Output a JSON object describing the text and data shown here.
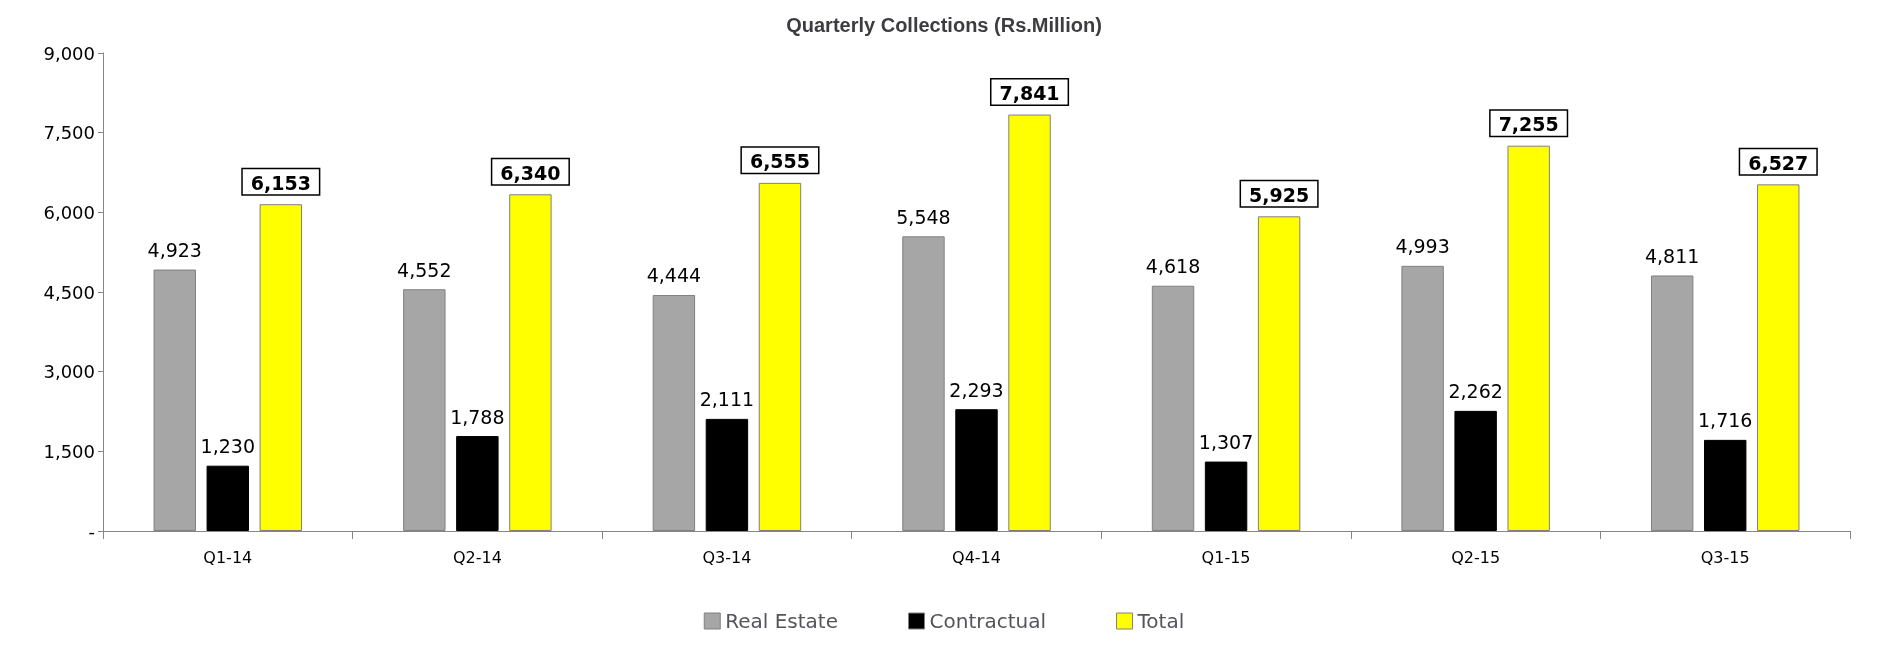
{
  "chart_data": {
    "type": "bar",
    "title": "Quarterly Collections (Rs.Million)",
    "categories": [
      "Q1-14",
      "Q2-14",
      "Q3-14",
      "Q4-14",
      "Q1-15",
      "Q2-15",
      "Q3-15"
    ],
    "series": [
      {
        "name": "Real Estate",
        "color": "#a6a6a6",
        "values": [
          4923,
          4552,
          4444,
          5548,
          4618,
          4993,
          4811
        ],
        "value_labels": [
          "4,923",
          "4,552",
          "4,444",
          "5,548",
          "4,618",
          "4,993",
          "4,811"
        ]
      },
      {
        "name": "Contractual",
        "color": "#000000",
        "values": [
          1230,
          1788,
          2111,
          2293,
          1307,
          2262,
          1716
        ],
        "value_labels": [
          "1,230",
          "1,788",
          "2,111",
          "2,293",
          "1,307",
          "2,262",
          "1,716"
        ]
      },
      {
        "name": "Total",
        "color": "#ffff00",
        "values": [
          6153,
          6340,
          6555,
          7841,
          5925,
          7255,
          6527
        ],
        "value_labels": [
          "6,153",
          "6,340",
          "6,555",
          "7,841",
          "5,925",
          "7,255",
          "6,527"
        ]
      }
    ],
    "ylim": [
      0,
      9000
    ],
    "yticks": [
      {
        "value": 0,
        "label": "-"
      },
      {
        "value": 1500,
        "label": "1,500"
      },
      {
        "value": 3000,
        "label": "3,000"
      },
      {
        "value": 4500,
        "label": "4,500"
      },
      {
        "value": 6000,
        "label": "6,000"
      },
      {
        "value": 7500,
        "label": "7,500"
      },
      {
        "value": 9000,
        "label": "9,000"
      }
    ],
    "grid": false,
    "legend": "bottom"
  }
}
